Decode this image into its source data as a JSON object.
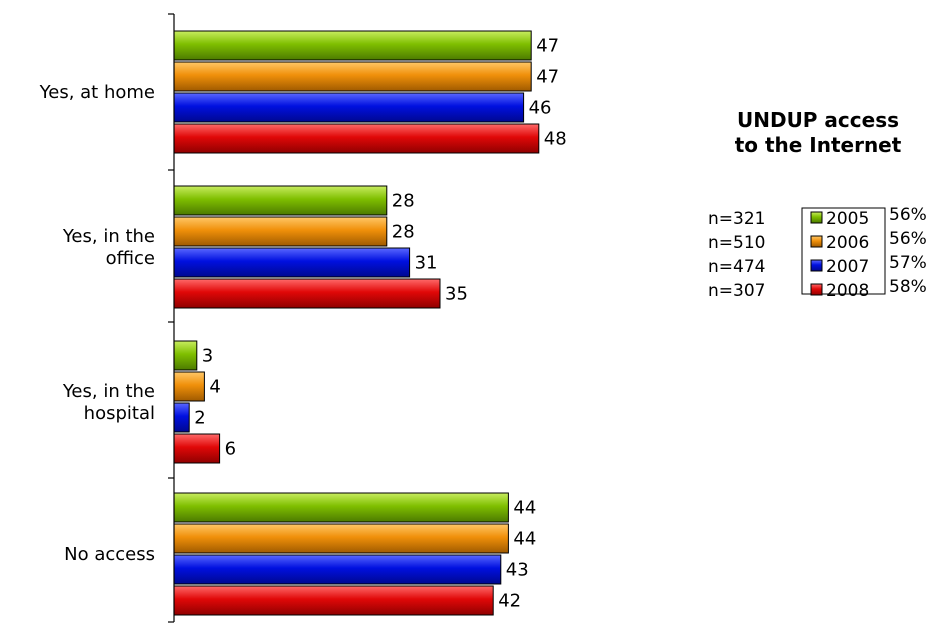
{
  "chart_data": {
    "type": "bar",
    "orientation": "horizontal",
    "title": "UNDUP access to the Internet",
    "title_lines": [
      "UNDUP access",
      "to the Internet"
    ],
    "categories": [
      "Yes, at home",
      "Yes, in the office",
      "Yes, in the hospital",
      "No access"
    ],
    "category_lines": [
      [
        "Yes, at home"
      ],
      [
        "Yes, in the",
        "office"
      ],
      [
        "Yes, in the",
        "hospital"
      ],
      [
        "No access"
      ]
    ],
    "series": [
      {
        "name": "2005",
        "values": [
          47,
          28,
          3,
          44
        ],
        "color": "#7fbf00",
        "n": "n=321",
        "total": "56%"
      },
      {
        "name": "2006",
        "values": [
          47,
          28,
          4,
          44
        ],
        "color": "#f0900a",
        "n": "n=510",
        "total": "56%"
      },
      {
        "name": "2007",
        "values": [
          46,
          31,
          2,
          43
        ],
        "color": "#0010e0",
        "n": "n=474",
        "total": "57%"
      },
      {
        "name": "2008",
        "values": [
          48,
          35,
          6,
          42
        ],
        "color": "#e00808",
        "n": "n=307",
        "total": "58%"
      }
    ],
    "xlim": [
      0,
      100
    ],
    "grid": false,
    "legend_position": "right"
  }
}
